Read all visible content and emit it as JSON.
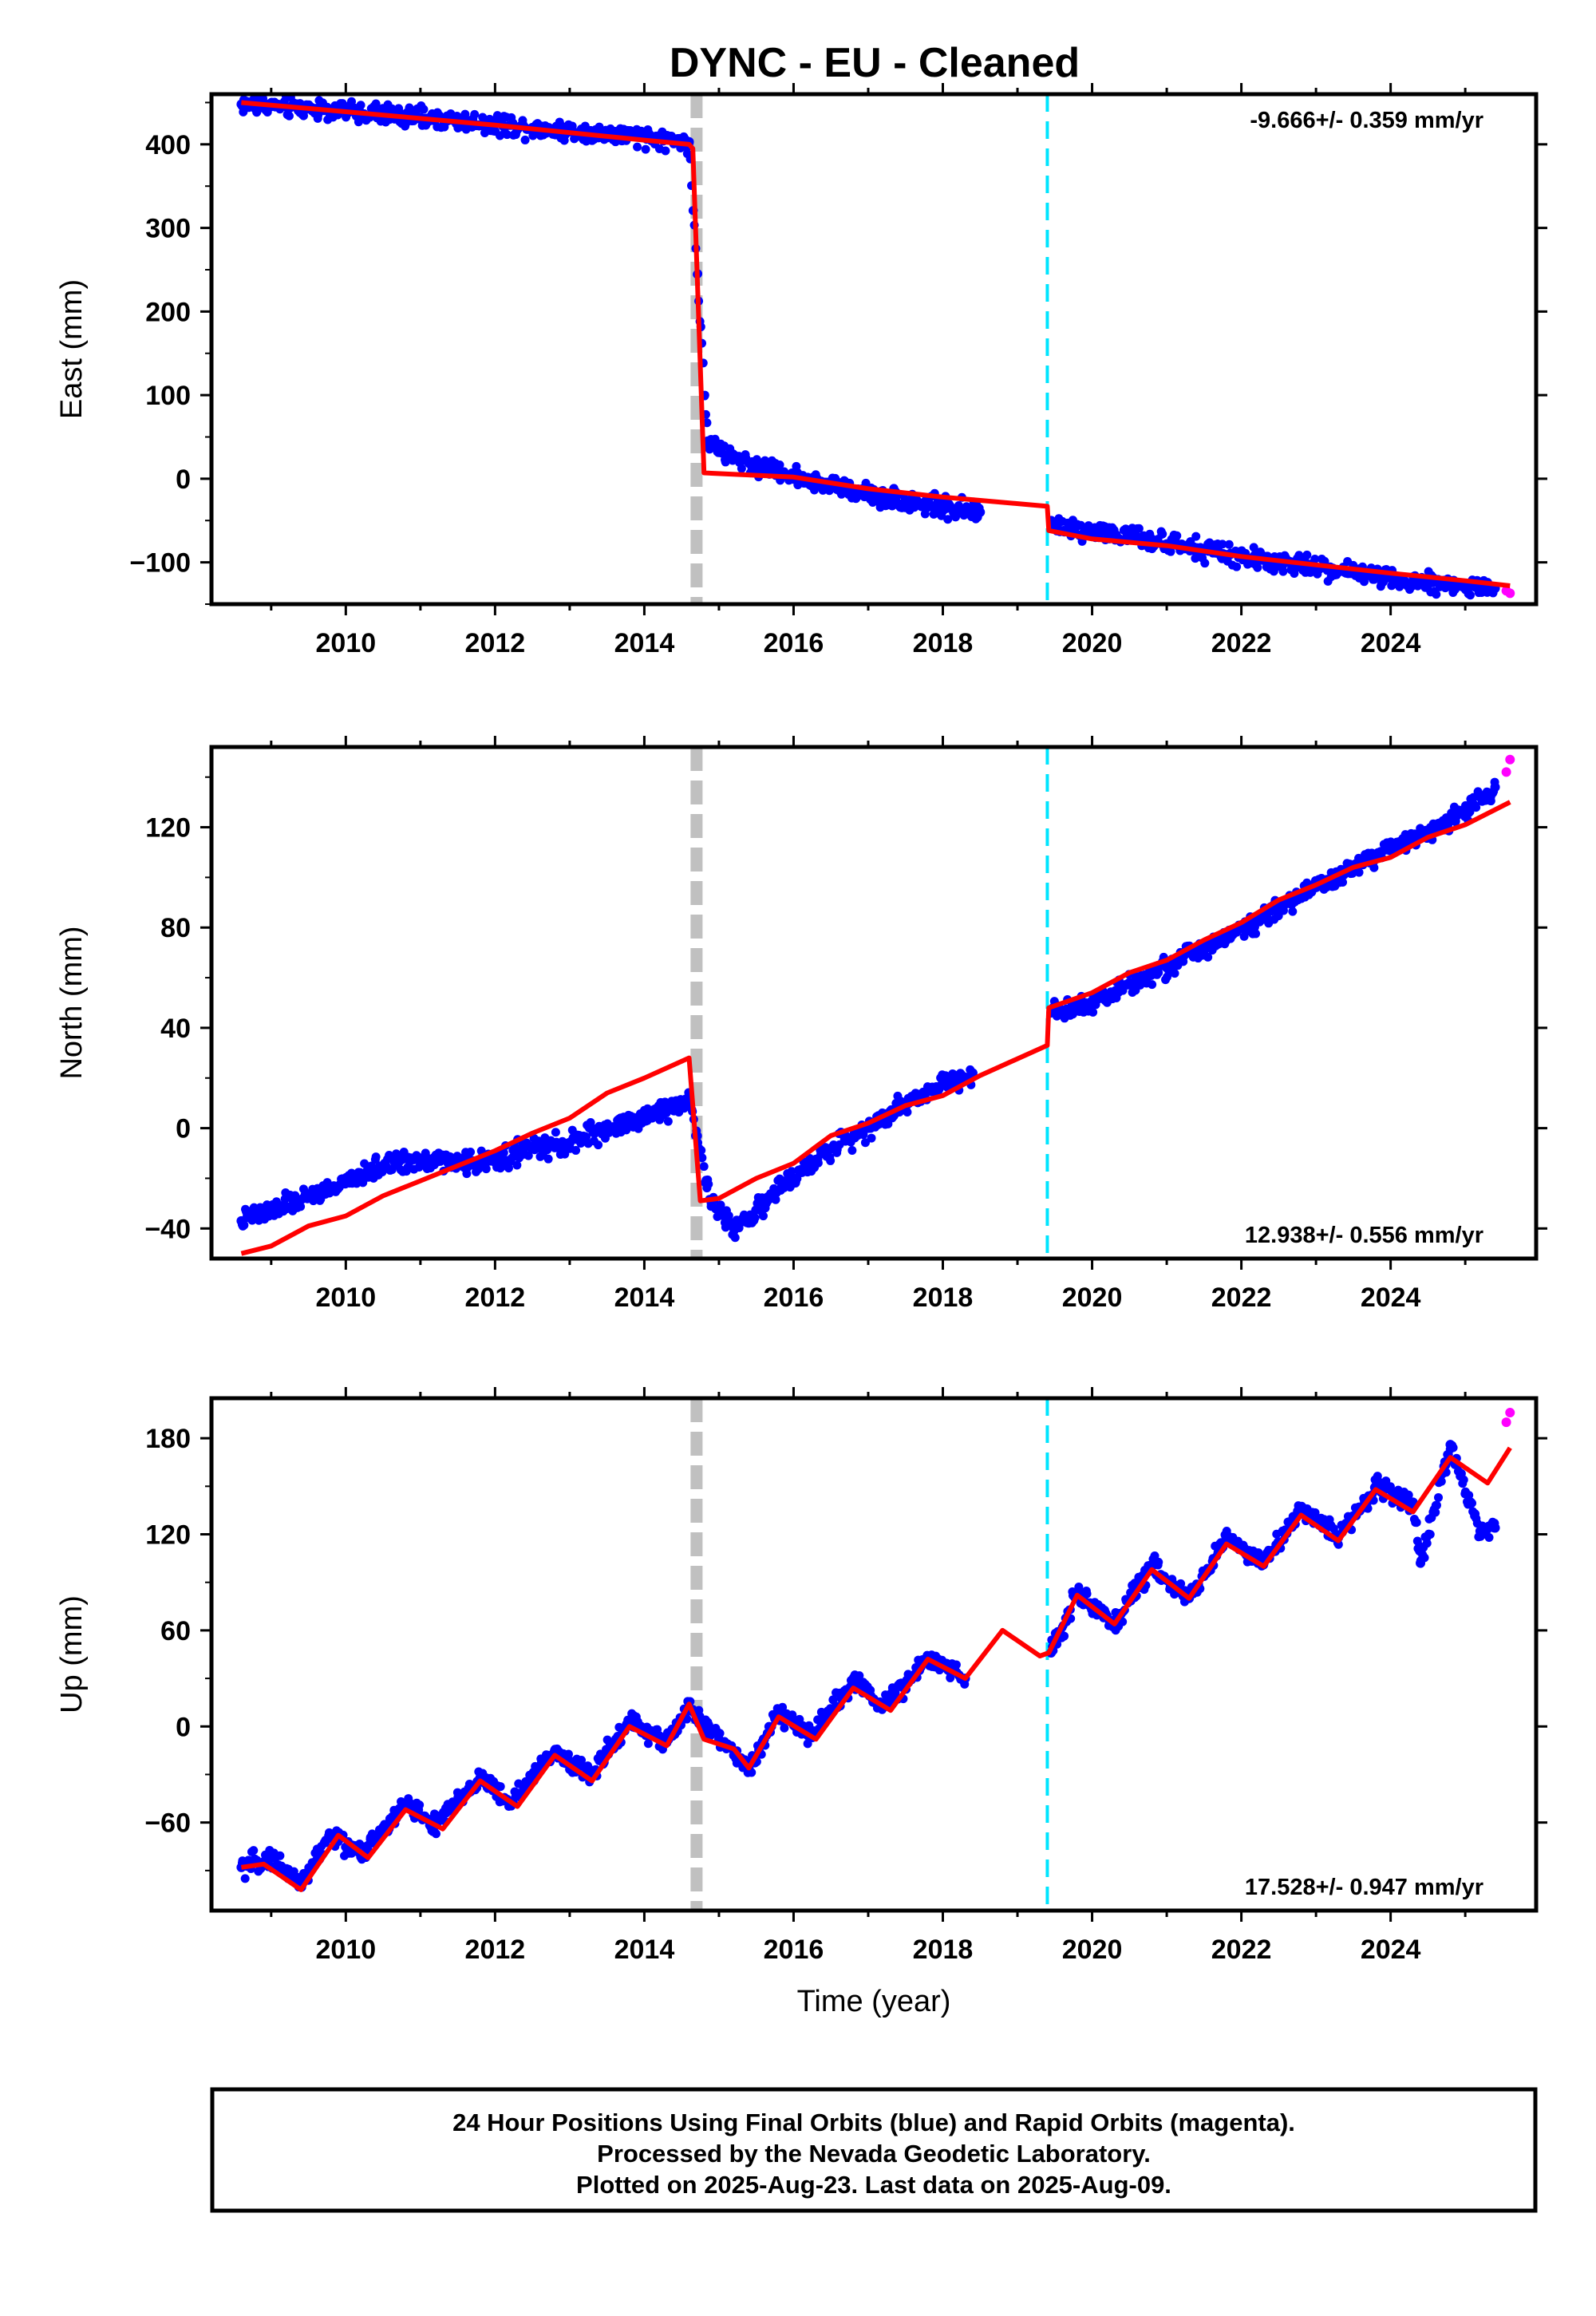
{
  "title": "DYNC  - EU - Cleaned",
  "colors": {
    "final_orbits": "#0000ff",
    "rapid_orbits": "#ff00ff",
    "model": "#ff0000",
    "offset_equipment": "#c0c0c0",
    "offset_other": "#00e5ff"
  },
  "footer": {
    "line1": "24 Hour Positions Using Final Orbits (blue) and Rapid Orbits (magenta).",
    "line2": "Processed by the Nevada Geodetic Laboratory.",
    "line3": "Plotted on 2025-Aug-23. Last data on 2025-Aug-09."
  },
  "chart_data": [
    {
      "type": "scatter",
      "component": "East",
      "ylabel": "East (mm)",
      "xlabel": "",
      "rate_label": "-9.666+/- 0.359 mm/yr",
      "rate_position": "top-right",
      "xlim": [
        2008.2,
        2025.95
      ],
      "ylim": [
        -150,
        460
      ],
      "xticks": [
        2010,
        2012,
        2014,
        2016,
        2018,
        2020,
        2022,
        2024
      ],
      "yticks": [
        -100,
        0,
        100,
        200,
        300,
        400
      ],
      "offsets": [
        {
          "x": 2014.7,
          "kind": "equipment"
        },
        {
          "x": 2019.4,
          "kind": "other"
        }
      ],
      "observations": [
        {
          "x": 2008.6,
          "y": 448
        },
        {
          "x": 2009.0,
          "y": 446
        },
        {
          "x": 2009.5,
          "y": 443
        },
        {
          "x": 2010.0,
          "y": 440
        },
        {
          "x": 2010.5,
          "y": 436
        },
        {
          "x": 2011.0,
          "y": 432
        },
        {
          "x": 2011.5,
          "y": 428
        },
        {
          "x": 2012.0,
          "y": 424
        },
        {
          "x": 2012.5,
          "y": 420
        },
        {
          "x": 2013.0,
          "y": 416
        },
        {
          "x": 2013.5,
          "y": 412
        },
        {
          "x": 2014.0,
          "y": 408
        },
        {
          "x": 2014.6,
          "y": 403
        },
        {
          "x": 2014.85,
          "y": 45
        },
        {
          "x": 2015.0,
          "y": 32
        },
        {
          "x": 2015.5,
          "y": 16
        },
        {
          "x": 2016.0,
          "y": 4
        },
        {
          "x": 2016.5,
          "y": -8
        },
        {
          "x": 2017.0,
          "y": -18
        },
        {
          "x": 2017.5,
          "y": -26
        },
        {
          "x": 2018.0,
          "y": -34
        },
        {
          "x": 2018.5,
          "y": -40
        },
        {
          "x": 2019.45,
          "y": -56
        },
        {
          "x": 2020.0,
          "y": -62
        },
        {
          "x": 2020.5,
          "y": -70
        },
        {
          "x": 2021.0,
          "y": -78
        },
        {
          "x": 2021.5,
          "y": -86
        },
        {
          "x": 2022.0,
          "y": -94
        },
        {
          "x": 2022.5,
          "y": -100
        },
        {
          "x": 2023.0,
          "y": -106
        },
        {
          "x": 2023.5,
          "y": -112
        },
        {
          "x": 2024.0,
          "y": -118
        },
        {
          "x": 2024.5,
          "y": -124
        },
        {
          "x": 2025.0,
          "y": -128
        },
        {
          "x": 2025.4,
          "y": -131
        }
      ],
      "rapid": [
        {
          "x": 2025.55,
          "y": -134
        },
        {
          "x": 2025.6,
          "y": -137
        }
      ],
      "model": [
        {
          "x": 2008.6,
          "y": 450
        },
        {
          "x": 2010.0,
          "y": 439
        },
        {
          "x": 2012.0,
          "y": 423
        },
        {
          "x": 2014.0,
          "y": 405
        },
        {
          "x": 2014.6,
          "y": 400
        },
        {
          "x": 2014.65,
          "y": 395
        },
        {
          "x": 2014.8,
          "y": 7
        },
        {
          "x": 2016.0,
          "y": 2
        },
        {
          "x": 2017.0,
          "y": -12
        },
        {
          "x": 2018.0,
          "y": -22
        },
        {
          "x": 2019.4,
          "y": -33
        },
        {
          "x": 2019.42,
          "y": -62
        },
        {
          "x": 2020.0,
          "y": -72
        },
        {
          "x": 2021.0,
          "y": -80
        },
        {
          "x": 2022.0,
          "y": -93
        },
        {
          "x": 2023.0,
          "y": -103
        },
        {
          "x": 2024.0,
          "y": -113
        },
        {
          "x": 2025.0,
          "y": -122
        },
        {
          "x": 2025.6,
          "y": -128
        }
      ]
    },
    {
      "type": "scatter",
      "component": "North",
      "ylabel": "North (mm)",
      "xlabel": "",
      "rate_label": "12.938+/- 0.556 mm/yr",
      "rate_position": "bottom-right",
      "xlim": [
        2008.2,
        2025.95
      ],
      "ylim": [
        -52,
        152
      ],
      "xticks": [
        2010,
        2012,
        2014,
        2016,
        2018,
        2020,
        2022,
        2024
      ],
      "yticks": [
        -40,
        0,
        40,
        80,
        120
      ],
      "offsets": [
        {
          "x": 2014.7,
          "kind": "equipment"
        },
        {
          "x": 2019.4,
          "kind": "other"
        }
      ],
      "observations": [
        {
          "x": 2008.6,
          "y": -37
        },
        {
          "x": 2009.0,
          "y": -33
        },
        {
          "x": 2009.5,
          "y": -27
        },
        {
          "x": 2010.0,
          "y": -22
        },
        {
          "x": 2010.5,
          "y": -15
        },
        {
          "x": 2011.0,
          "y": -12
        },
        {
          "x": 2011.5,
          "y": -14
        },
        {
          "x": 2012.0,
          "y": -13
        },
        {
          "x": 2012.5,
          "y": -8
        },
        {
          "x": 2013.0,
          "y": -6
        },
        {
          "x": 2013.5,
          "y": 0
        },
        {
          "x": 2014.0,
          "y": 4
        },
        {
          "x": 2014.6,
          "y": 12
        },
        {
          "x": 2014.9,
          "y": -30
        },
        {
          "x": 2015.2,
          "y": -40
        },
        {
          "x": 2015.6,
          "y": -30
        },
        {
          "x": 2016.0,
          "y": -20
        },
        {
          "x": 2016.5,
          "y": -8
        },
        {
          "x": 2017.0,
          "y": 0
        },
        {
          "x": 2017.5,
          "y": 10
        },
        {
          "x": 2018.0,
          "y": 18
        },
        {
          "x": 2018.4,
          "y": 22
        },
        {
          "x": 2019.45,
          "y": 46
        },
        {
          "x": 2020.0,
          "y": 50
        },
        {
          "x": 2020.5,
          "y": 58
        },
        {
          "x": 2021.0,
          "y": 64
        },
        {
          "x": 2021.5,
          "y": 72
        },
        {
          "x": 2022.0,
          "y": 80
        },
        {
          "x": 2022.5,
          "y": 88
        },
        {
          "x": 2023.0,
          "y": 96
        },
        {
          "x": 2023.5,
          "y": 104
        },
        {
          "x": 2024.0,
          "y": 112
        },
        {
          "x": 2024.5,
          "y": 118
        },
        {
          "x": 2025.0,
          "y": 126
        },
        {
          "x": 2025.4,
          "y": 136
        }
      ],
      "rapid": [
        {
          "x": 2025.55,
          "y": 142
        },
        {
          "x": 2025.6,
          "y": 147
        }
      ],
      "model": [
        {
          "x": 2008.6,
          "y": -50
        },
        {
          "x": 2009.0,
          "y": -47
        },
        {
          "x": 2009.5,
          "y": -39
        },
        {
          "x": 2010.0,
          "y": -35
        },
        {
          "x": 2010.5,
          "y": -27
        },
        {
          "x": 2011.0,
          "y": -21
        },
        {
          "x": 2011.5,
          "y": -15
        },
        {
          "x": 2012.0,
          "y": -9
        },
        {
          "x": 2012.5,
          "y": -2
        },
        {
          "x": 2013.0,
          "y": 4
        },
        {
          "x": 2013.5,
          "y": 14
        },
        {
          "x": 2014.0,
          "y": 20
        },
        {
          "x": 2014.6,
          "y": 28
        },
        {
          "x": 2014.75,
          "y": -29
        },
        {
          "x": 2015.0,
          "y": -28
        },
        {
          "x": 2015.5,
          "y": -20
        },
        {
          "x": 2016.0,
          "y": -14
        },
        {
          "x": 2016.5,
          "y": -3
        },
        {
          "x": 2017.0,
          "y": 2
        },
        {
          "x": 2017.5,
          "y": 9
        },
        {
          "x": 2018.0,
          "y": 13
        },
        {
          "x": 2018.5,
          "y": 21
        },
        {
          "x": 2019.4,
          "y": 33
        },
        {
          "x": 2019.42,
          "y": 48
        },
        {
          "x": 2020.0,
          "y": 54
        },
        {
          "x": 2020.5,
          "y": 62
        },
        {
          "x": 2021.0,
          "y": 67
        },
        {
          "x": 2021.5,
          "y": 75
        },
        {
          "x": 2022.0,
          "y": 82
        },
        {
          "x": 2022.5,
          "y": 91
        },
        {
          "x": 2023.0,
          "y": 97
        },
        {
          "x": 2023.5,
          "y": 104
        },
        {
          "x": 2024.0,
          "y": 108
        },
        {
          "x": 2024.5,
          "y": 116
        },
        {
          "x": 2025.0,
          "y": 121
        },
        {
          "x": 2025.6,
          "y": 130
        }
      ]
    },
    {
      "type": "scatter",
      "component": "Up",
      "ylabel": "Up (mm)",
      "xlabel": "Time (year)",
      "rate_label": "17.528+/- 0.947 mm/yr",
      "rate_position": "bottom-right",
      "xlim": [
        2008.2,
        2025.95
      ],
      "ylim": [
        -115,
        205
      ],
      "xticks": [
        2010,
        2012,
        2014,
        2016,
        2018,
        2020,
        2022,
        2024
      ],
      "yticks": [
        -60,
        0,
        60,
        120,
        180
      ],
      "offsets": [
        {
          "x": 2014.7,
          "kind": "equipment"
        },
        {
          "x": 2019.4,
          "kind": "other"
        }
      ],
      "observations": [
        {
          "x": 2008.6,
          "y": -88
        },
        {
          "x": 2009.0,
          "y": -82
        },
        {
          "x": 2009.4,
          "y": -98
        },
        {
          "x": 2009.8,
          "y": -68
        },
        {
          "x": 2010.2,
          "y": -80
        },
        {
          "x": 2010.8,
          "y": -48
        },
        {
          "x": 2011.2,
          "y": -62
        },
        {
          "x": 2011.8,
          "y": -32
        },
        {
          "x": 2012.2,
          "y": -48
        },
        {
          "x": 2012.8,
          "y": -15
        },
        {
          "x": 2013.3,
          "y": -30
        },
        {
          "x": 2013.8,
          "y": 4
        },
        {
          "x": 2014.3,
          "y": -10
        },
        {
          "x": 2014.6,
          "y": 12
        },
        {
          "x": 2015.0,
          "y": -8
        },
        {
          "x": 2015.4,
          "y": -26
        },
        {
          "x": 2015.8,
          "y": 10
        },
        {
          "x": 2016.2,
          "y": -6
        },
        {
          "x": 2016.8,
          "y": 28
        },
        {
          "x": 2017.2,
          "y": 12
        },
        {
          "x": 2017.8,
          "y": 42
        },
        {
          "x": 2018.3,
          "y": 30
        },
        {
          "x": 2019.45,
          "y": 46
        },
        {
          "x": 2019.8,
          "y": 84
        },
        {
          "x": 2020.3,
          "y": 64
        },
        {
          "x": 2020.8,
          "y": 100
        },
        {
          "x": 2021.3,
          "y": 80
        },
        {
          "x": 2021.8,
          "y": 118
        },
        {
          "x": 2022.3,
          "y": 102
        },
        {
          "x": 2022.8,
          "y": 136
        },
        {
          "x": 2023.3,
          "y": 118
        },
        {
          "x": 2023.8,
          "y": 150
        },
        {
          "x": 2024.3,
          "y": 140
        },
        {
          "x": 2024.4,
          "y": 102
        },
        {
          "x": 2024.8,
          "y": 176
        },
        {
          "x": 2025.2,
          "y": 122
        },
        {
          "x": 2025.4,
          "y": 124
        }
      ],
      "rapid": [
        {
          "x": 2025.55,
          "y": 190
        },
        {
          "x": 2025.6,
          "y": 196
        }
      ],
      "model": [
        {
          "x": 2008.6,
          "y": -88
        },
        {
          "x": 2008.9,
          "y": -86
        },
        {
          "x": 2009.4,
          "y": -102
        },
        {
          "x": 2009.9,
          "y": -68
        },
        {
          "x": 2010.3,
          "y": -82
        },
        {
          "x": 2010.8,
          "y": -52
        },
        {
          "x": 2011.3,
          "y": -64
        },
        {
          "x": 2011.8,
          "y": -34
        },
        {
          "x": 2012.3,
          "y": -50
        },
        {
          "x": 2012.8,
          "y": -18
        },
        {
          "x": 2013.3,
          "y": -34
        },
        {
          "x": 2013.8,
          "y": 0
        },
        {
          "x": 2014.3,
          "y": -12
        },
        {
          "x": 2014.6,
          "y": 14
        },
        {
          "x": 2014.8,
          "y": -8
        },
        {
          "x": 2015.2,
          "y": -14
        },
        {
          "x": 2015.4,
          "y": -26
        },
        {
          "x": 2015.8,
          "y": 6
        },
        {
          "x": 2016.3,
          "y": -8
        },
        {
          "x": 2016.8,
          "y": 24
        },
        {
          "x": 2017.3,
          "y": 10
        },
        {
          "x": 2017.8,
          "y": 42
        },
        {
          "x": 2018.3,
          "y": 30
        },
        {
          "x": 2018.8,
          "y": 60
        },
        {
          "x": 2019.3,
          "y": 44
        },
        {
          "x": 2019.42,
          "y": 46
        },
        {
          "x": 2019.8,
          "y": 82
        },
        {
          "x": 2020.3,
          "y": 64
        },
        {
          "x": 2020.8,
          "y": 98
        },
        {
          "x": 2021.3,
          "y": 80
        },
        {
          "x": 2021.8,
          "y": 114
        },
        {
          "x": 2022.3,
          "y": 100
        },
        {
          "x": 2022.8,
          "y": 132
        },
        {
          "x": 2023.3,
          "y": 116
        },
        {
          "x": 2023.8,
          "y": 148
        },
        {
          "x": 2024.3,
          "y": 134
        },
        {
          "x": 2024.8,
          "y": 168
        },
        {
          "x": 2025.3,
          "y": 152
        },
        {
          "x": 2025.6,
          "y": 174
        }
      ]
    }
  ]
}
